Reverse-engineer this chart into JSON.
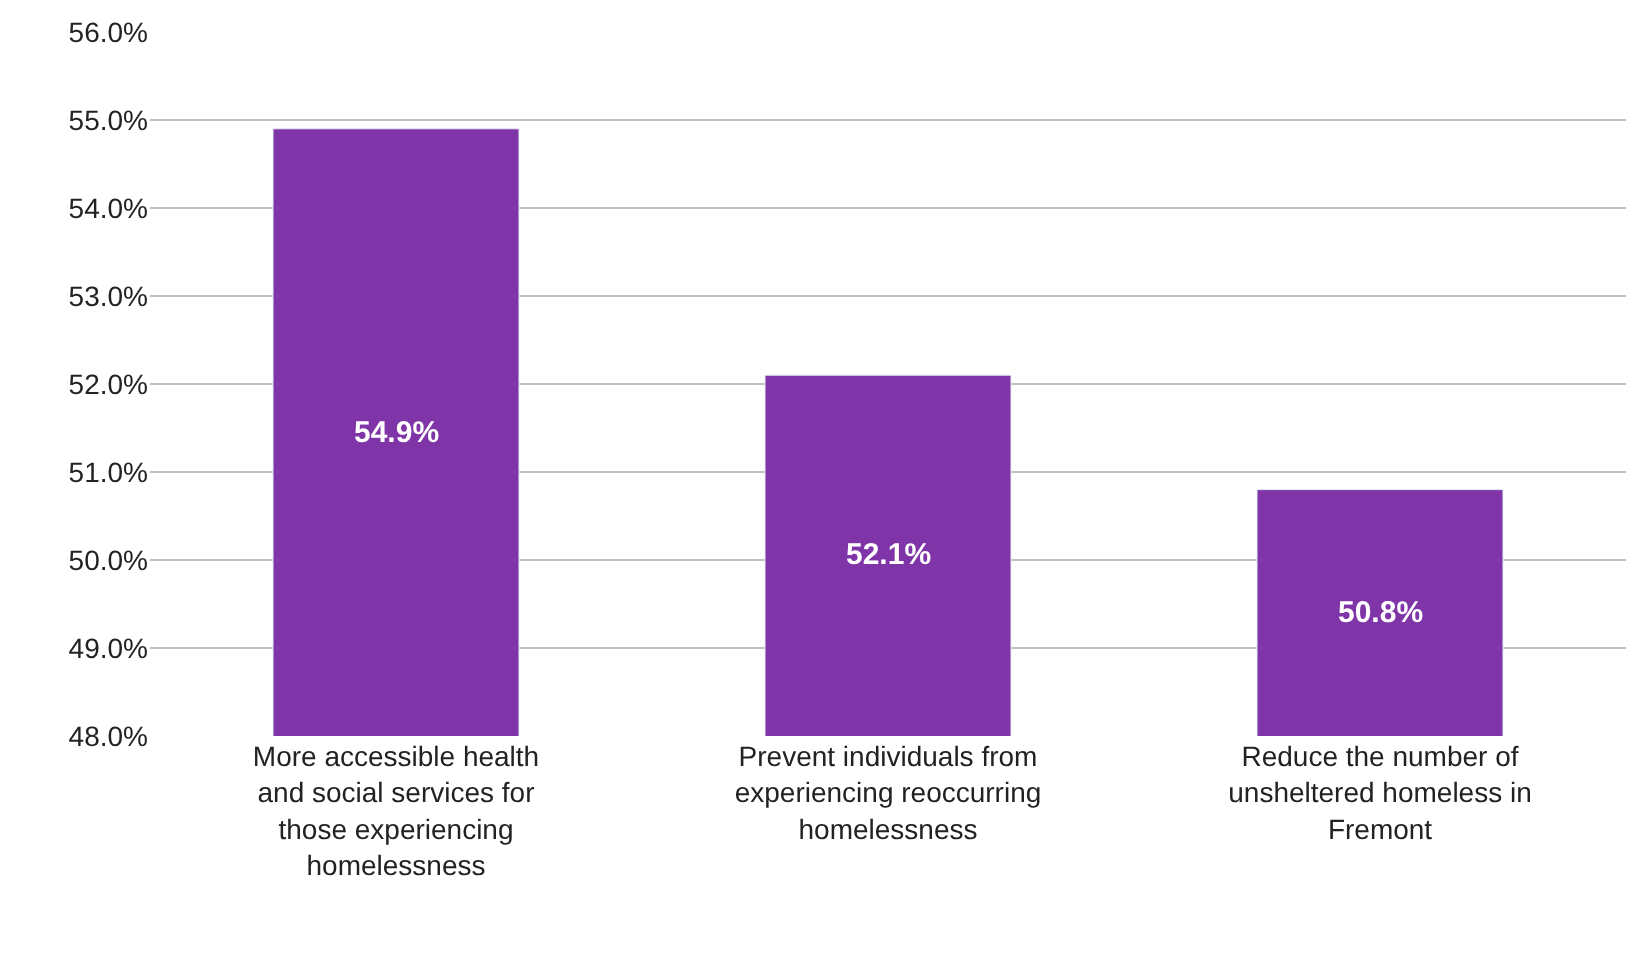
{
  "chart_data": {
    "type": "bar",
    "categories": [
      "More accessible health and social services for those experiencing homelessness",
      "Prevent individuals from experiencing reoccurring homelessness",
      "Reduce the number of unsheltered homeless in Fremont"
    ],
    "values": [
      54.9,
      52.1,
      50.8
    ],
    "value_labels": [
      "54.9%",
      "52.1%",
      "50.8%"
    ],
    "color": "#7f35a8",
    "ylim": [
      48,
      56
    ],
    "yticks": [
      {
        "value": 48,
        "label": "48.0%"
      },
      {
        "value": 49,
        "label": "49.0%"
      },
      {
        "value": 50,
        "label": "50.0%"
      },
      {
        "value": 51,
        "label": "51.0%"
      },
      {
        "value": 52,
        "label": "52.0%"
      },
      {
        "value": 53,
        "label": "53.0%"
      },
      {
        "value": 54,
        "label": "54.0%"
      },
      {
        "value": 55,
        "label": "55.0%"
      },
      {
        "value": 56,
        "label": "56.0%"
      }
    ],
    "grid": "y",
    "legend": false
  }
}
